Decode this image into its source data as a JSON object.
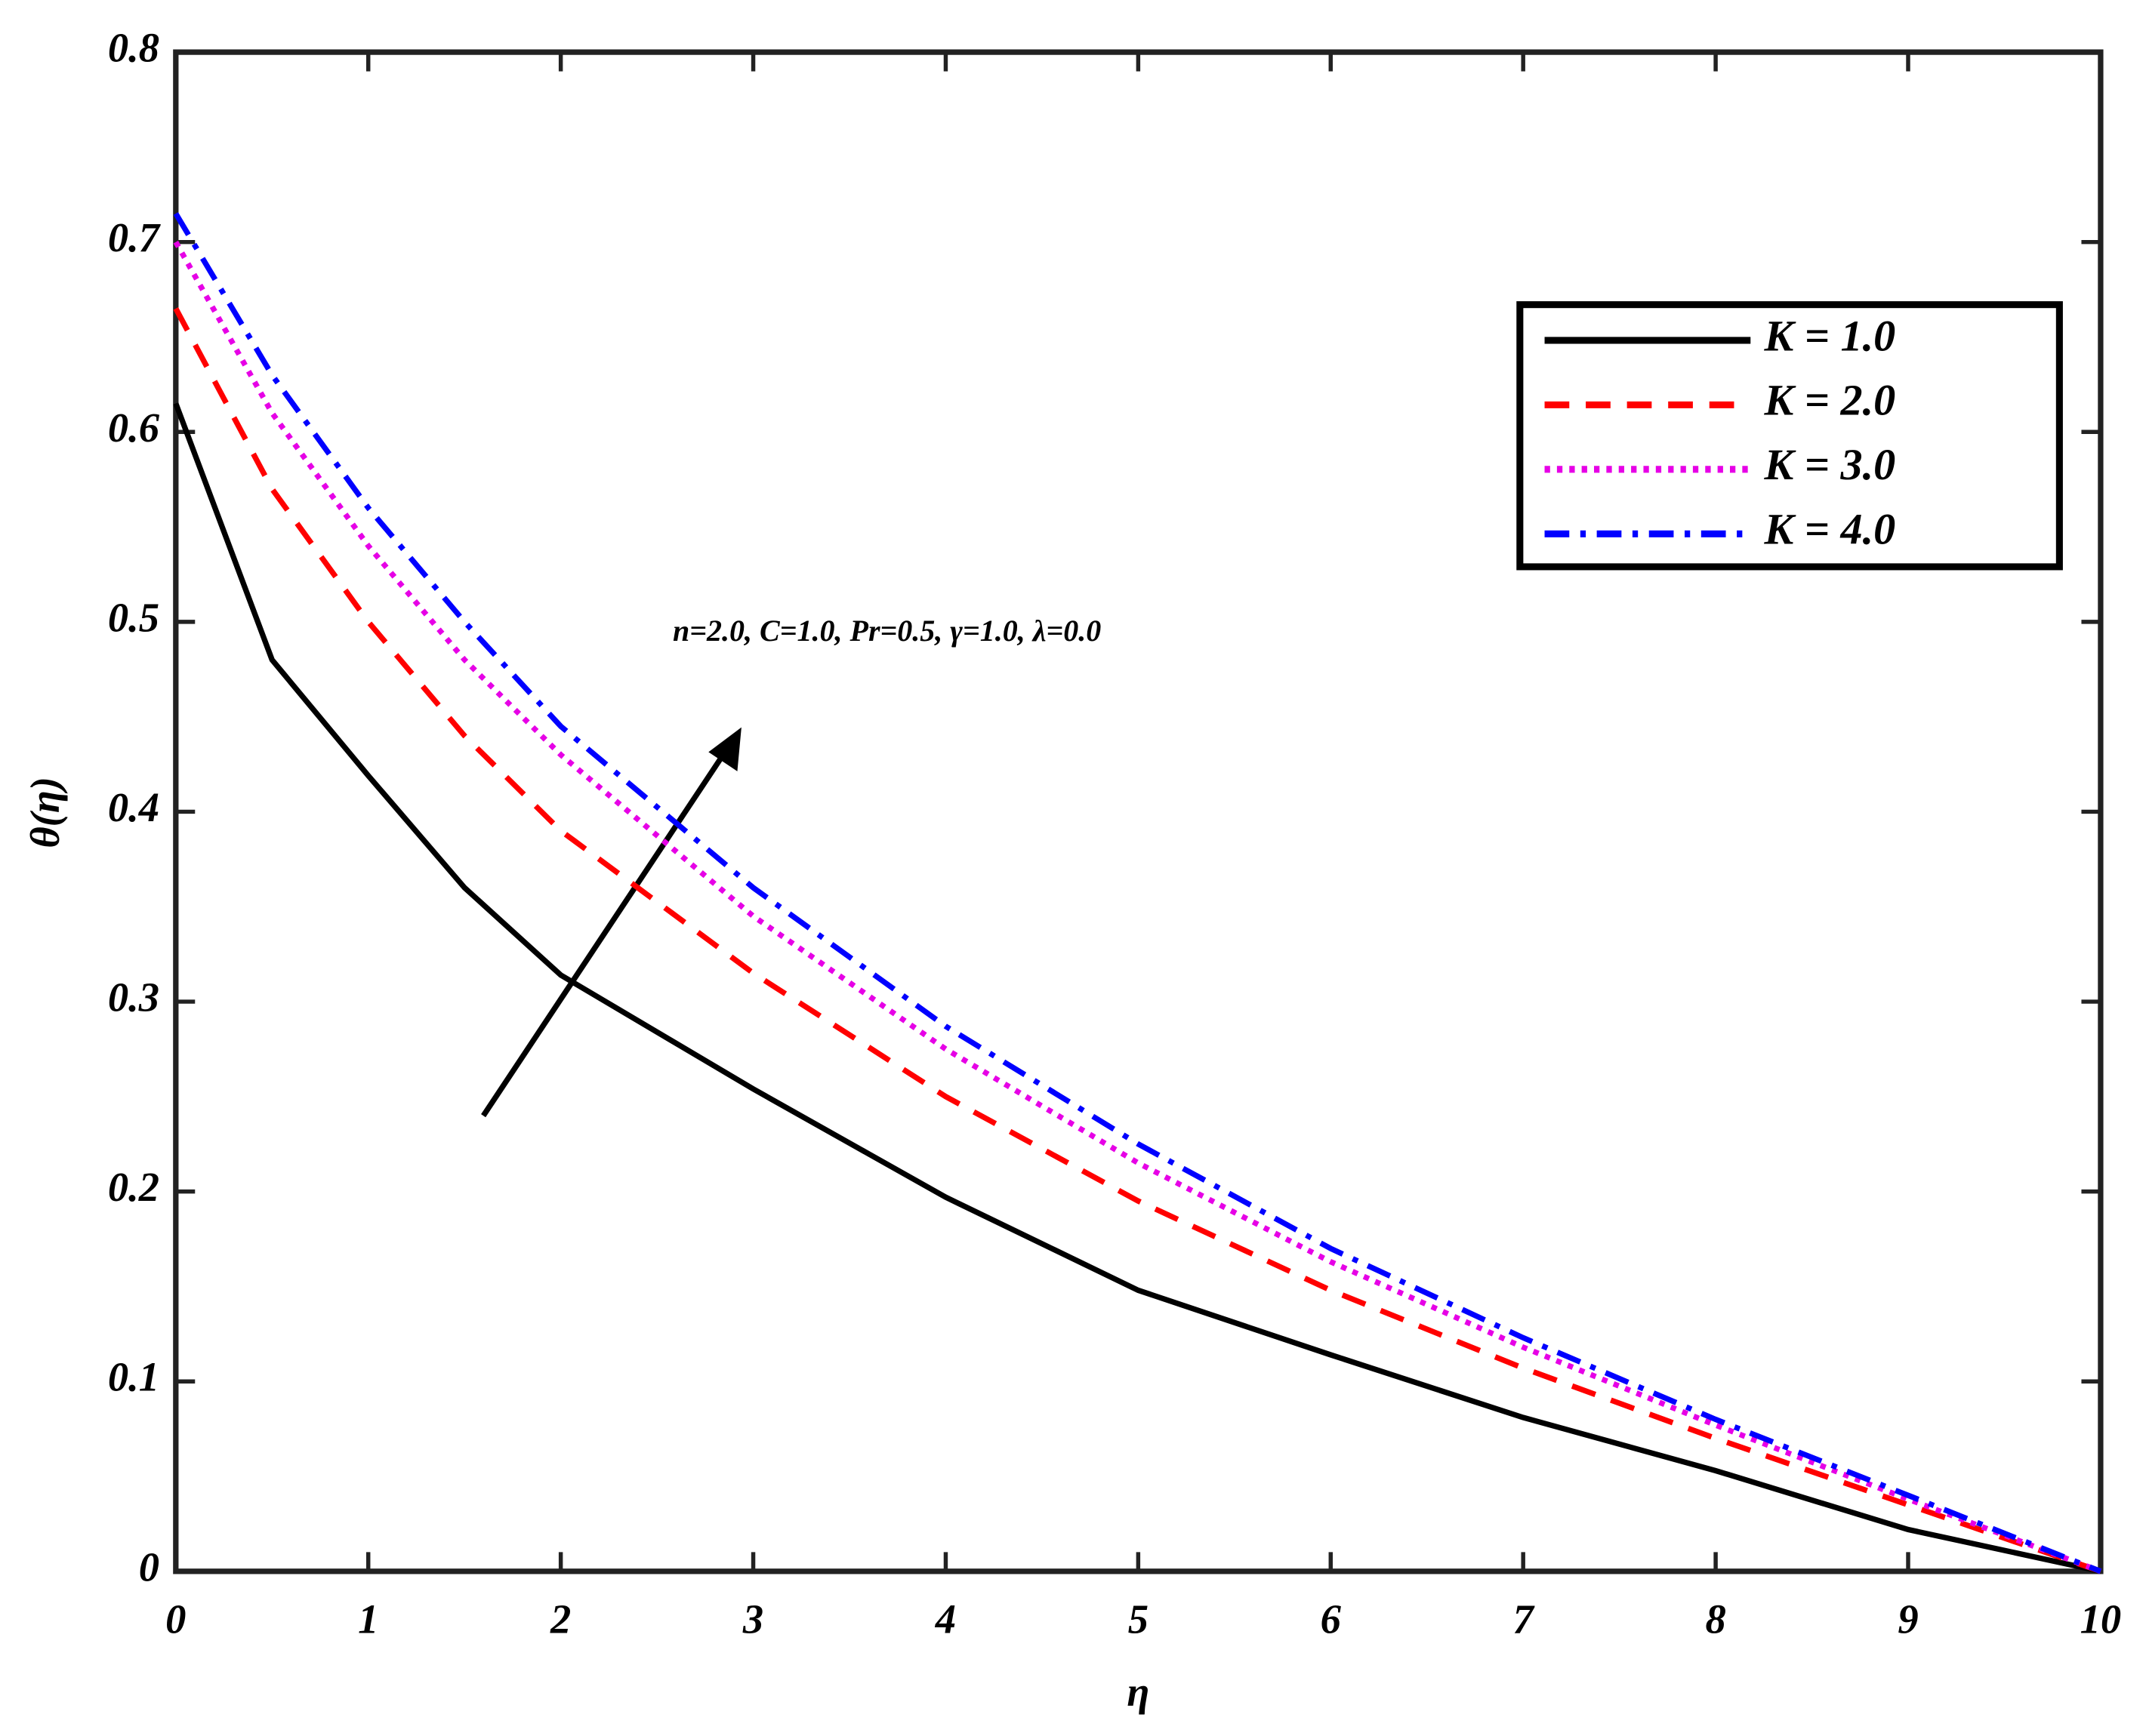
{
  "chart_data": {
    "type": "line",
    "x_label": "η",
    "y_label": "θ(η)",
    "annotation": "n=2.0, C=1.0, Pr=0.5,  γ=1.0,  λ=0.0",
    "x": [
      0,
      0.5,
      1,
      1.5,
      2,
      3,
      4,
      5,
      6,
      7,
      8,
      9,
      10
    ],
    "series": [
      {
        "name": "K = 1.0",
        "color": "#000000",
        "linestyle": "solid",
        "values": [
          0.615,
          0.48,
          0.419,
          0.36,
          0.314,
          0.254,
          0.197,
          0.148,
          0.114,
          0.081,
          0.053,
          0.022,
          0
        ]
      },
      {
        "name": "K = 2.0",
        "color": "#ff0000",
        "linestyle": "dashed",
        "values": [
          0.665,
          0.57,
          0.5,
          0.44,
          0.39,
          0.315,
          0.25,
          0.195,
          0.148,
          0.107,
          0.07,
          0.035,
          0
        ]
      },
      {
        "name": "K = 3.0",
        "color": "#e600e6",
        "linestyle": "dotted",
        "values": [
          0.7,
          0.61,
          0.54,
          0.48,
          0.43,
          0.345,
          0.275,
          0.215,
          0.163,
          0.118,
          0.077,
          0.038,
          0
        ]
      },
      {
        "name": "K = 4.0",
        "color": "#0000ff",
        "linestyle": "dashdot",
        "values": [
          0.715,
          0.63,
          0.56,
          0.5,
          0.445,
          0.36,
          0.287,
          0.225,
          0.17,
          0.123,
          0.08,
          0.04,
          0
        ]
      }
    ],
    "xlim": [
      0,
      10
    ],
    "xticks": [
      0,
      1,
      2,
      3,
      4,
      5,
      6,
      7,
      8,
      9,
      10
    ],
    "ylim": [
      0,
      0.8
    ],
    "yticks": [
      0,
      0.1,
      0.2,
      0.3,
      0.4,
      0.5,
      0.6,
      0.7,
      0.8
    ],
    "grid": false,
    "legend": "upper right"
  }
}
